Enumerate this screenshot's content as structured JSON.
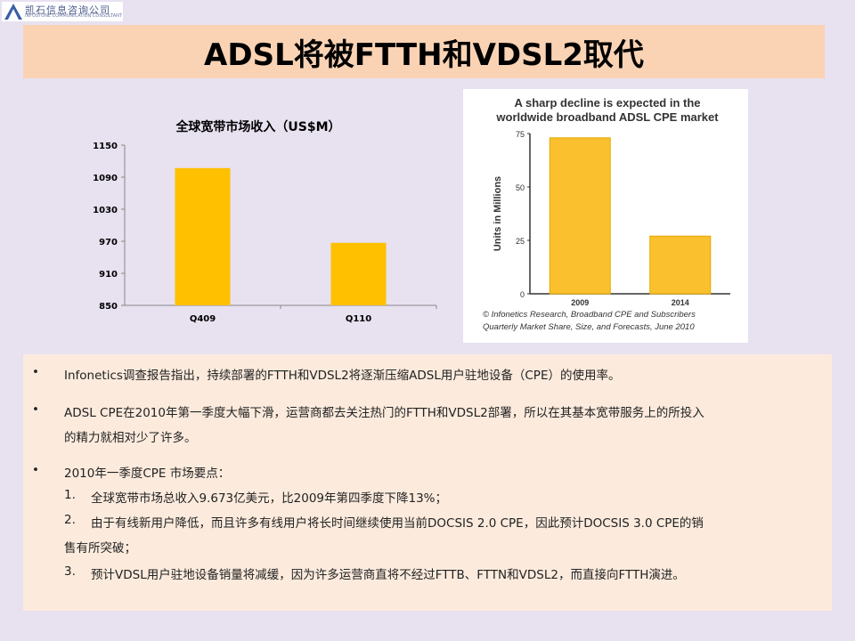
{
  "logo": {
    "name_cn": "凯石信息咨询公司",
    "name_en": "INFOSTONE COMMUNICATION CONSULTANT"
  },
  "title": "ADSL将被FTTH和VDSL2取代",
  "left_chart": {
    "chart_data": {
      "type": "bar",
      "title": "全球宽带市场收入（US$M）",
      "categories": [
        "Q409",
        "Q110"
      ],
      "values": [
        1107,
        967
      ],
      "ylim": [
        850,
        1150
      ],
      "yticks": [
        850,
        910,
        970,
        1030,
        1090,
        1150
      ],
      "bar_color": "#ffc000"
    }
  },
  "right_chart": {
    "chart_data": {
      "type": "bar",
      "title_line1": "A sharp decline is expected in the",
      "title_line2": "worldwide broadband ADSL CPE market",
      "ylabel": "Units in Millions",
      "categories": [
        "2009",
        "2014"
      ],
      "values": [
        73,
        27
      ],
      "ylim": [
        0,
        75
      ],
      "yticks": [
        0,
        25,
        50,
        75
      ],
      "bar_color": "#fbc02d",
      "source_line1": "© Infonetics Research, Broadband CPE and Subscribers",
      "source_line2": "Quarterly Market Share, Size, and Forecasts, June 2010"
    }
  },
  "content": {
    "bullet_symbol": "•",
    "b1": "Infonetics调查报告指出，持续部署的FTTH和VDSL2将逐渐压缩ADSL用户驻地设备（CPE）的使用率。",
    "b2_l1": "ADSL CPE在2010年第一季度大幅下滑，运营商都去关注热门的FTTH和VDSL2部署，所以在其基本宽带服务上的所投入",
    "b2_l2": "的精力就相对少了许多。",
    "b3": "2010年一季度CPE 市场要点：",
    "n1_num": "1.",
    "n1": "全球宽带市场总收入9.673亿美元，比2009年第四季度下降13%；",
    "n2_num": "2.",
    "n2_l1": "由于有线新用户降低，而且许多有线用户将长时间继续使用当前DOCSIS 2.0 CPE，因此预计DOCSIS 3.0 CPE的销",
    "n2_l2": "售有所突破；",
    "n3_num": "3.",
    "n3": "预计VDSL用户驻地设备销量将减缓，因为许多运营商直将不经过FTTB、FTTN和VDSL2，而直接向FTTH演进。"
  }
}
